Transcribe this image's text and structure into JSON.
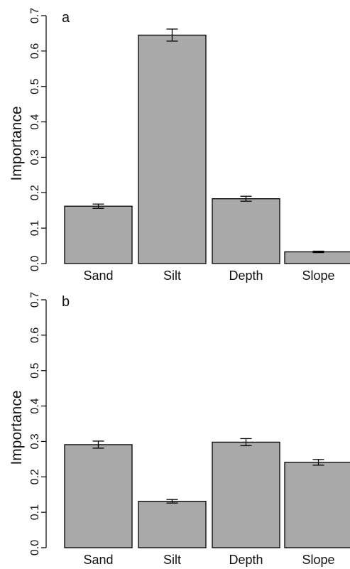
{
  "chart_data": [
    {
      "type": "bar",
      "panel_label": "a",
      "ylabel": "Importance",
      "ylim": [
        0,
        0.7
      ],
      "yticks": [
        "0.0",
        "0.1",
        "0.2",
        "0.3",
        "0.4",
        "0.5",
        "0.6",
        "0.7"
      ],
      "categories": [
        "Sand",
        "Silt",
        "Depth",
        "Slope"
      ],
      "values": [
        0.162,
        0.645,
        0.183,
        0.033
      ],
      "errors": [
        0.006,
        0.017,
        0.007,
        0.002
      ],
      "bar_color": "#a9a9a9"
    },
    {
      "type": "bar",
      "panel_label": "b",
      "ylabel": "Importance",
      "ylim": [
        0,
        0.7
      ],
      "yticks": [
        "0.0",
        "0.1",
        "0.2",
        "0.3",
        "0.4",
        "0.5",
        "0.6",
        "0.7"
      ],
      "categories": [
        "Sand",
        "Silt",
        "Depth",
        "Slope"
      ],
      "values": [
        0.291,
        0.131,
        0.298,
        0.241
      ],
      "errors": [
        0.01,
        0.005,
        0.01,
        0.008
      ],
      "bar_color": "#a9a9a9"
    }
  ]
}
